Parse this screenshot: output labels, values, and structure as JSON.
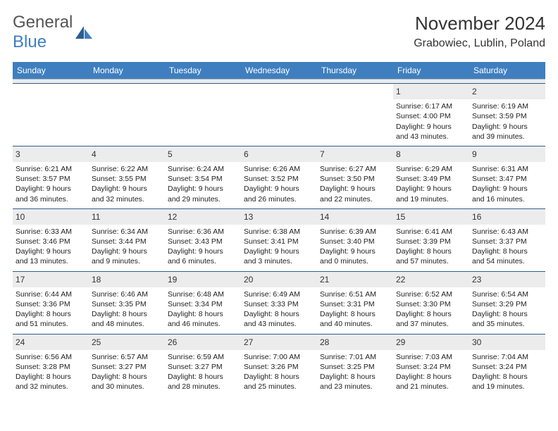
{
  "brand": {
    "word1": "General",
    "word2": "Blue"
  },
  "title": "November 2024",
  "location": "Grabowiec, Lublin, Poland",
  "colors": {
    "header_bg": "#3f7fbf",
    "header_text": "#ffffff",
    "daynum_bg": "#ececec",
    "border": "#2e5e8e",
    "text": "#222222",
    "brand_gray": "#555555",
    "brand_blue": "#3f7fbf"
  },
  "days_of_week": [
    "Sunday",
    "Monday",
    "Tuesday",
    "Wednesday",
    "Thursday",
    "Friday",
    "Saturday"
  ],
  "weeks": [
    [
      {
        "n": "",
        "sr": "",
        "ss": "",
        "d1": "",
        "d2": ""
      },
      {
        "n": "",
        "sr": "",
        "ss": "",
        "d1": "",
        "d2": ""
      },
      {
        "n": "",
        "sr": "",
        "ss": "",
        "d1": "",
        "d2": ""
      },
      {
        "n": "",
        "sr": "",
        "ss": "",
        "d1": "",
        "d2": ""
      },
      {
        "n": "",
        "sr": "",
        "ss": "",
        "d1": "",
        "d2": ""
      },
      {
        "n": "1",
        "sr": "Sunrise: 6:17 AM",
        "ss": "Sunset: 4:00 PM",
        "d1": "Daylight: 9 hours",
        "d2": "and 43 minutes."
      },
      {
        "n": "2",
        "sr": "Sunrise: 6:19 AM",
        "ss": "Sunset: 3:59 PM",
        "d1": "Daylight: 9 hours",
        "d2": "and 39 minutes."
      }
    ],
    [
      {
        "n": "3",
        "sr": "Sunrise: 6:21 AM",
        "ss": "Sunset: 3:57 PM",
        "d1": "Daylight: 9 hours",
        "d2": "and 36 minutes."
      },
      {
        "n": "4",
        "sr": "Sunrise: 6:22 AM",
        "ss": "Sunset: 3:55 PM",
        "d1": "Daylight: 9 hours",
        "d2": "and 32 minutes."
      },
      {
        "n": "5",
        "sr": "Sunrise: 6:24 AM",
        "ss": "Sunset: 3:54 PM",
        "d1": "Daylight: 9 hours",
        "d2": "and 29 minutes."
      },
      {
        "n": "6",
        "sr": "Sunrise: 6:26 AM",
        "ss": "Sunset: 3:52 PM",
        "d1": "Daylight: 9 hours",
        "d2": "and 26 minutes."
      },
      {
        "n": "7",
        "sr": "Sunrise: 6:27 AM",
        "ss": "Sunset: 3:50 PM",
        "d1": "Daylight: 9 hours",
        "d2": "and 22 minutes."
      },
      {
        "n": "8",
        "sr": "Sunrise: 6:29 AM",
        "ss": "Sunset: 3:49 PM",
        "d1": "Daylight: 9 hours",
        "d2": "and 19 minutes."
      },
      {
        "n": "9",
        "sr": "Sunrise: 6:31 AM",
        "ss": "Sunset: 3:47 PM",
        "d1": "Daylight: 9 hours",
        "d2": "and 16 minutes."
      }
    ],
    [
      {
        "n": "10",
        "sr": "Sunrise: 6:33 AM",
        "ss": "Sunset: 3:46 PM",
        "d1": "Daylight: 9 hours",
        "d2": "and 13 minutes."
      },
      {
        "n": "11",
        "sr": "Sunrise: 6:34 AM",
        "ss": "Sunset: 3:44 PM",
        "d1": "Daylight: 9 hours",
        "d2": "and 9 minutes."
      },
      {
        "n": "12",
        "sr": "Sunrise: 6:36 AM",
        "ss": "Sunset: 3:43 PM",
        "d1": "Daylight: 9 hours",
        "d2": "and 6 minutes."
      },
      {
        "n": "13",
        "sr": "Sunrise: 6:38 AM",
        "ss": "Sunset: 3:41 PM",
        "d1": "Daylight: 9 hours",
        "d2": "and 3 minutes."
      },
      {
        "n": "14",
        "sr": "Sunrise: 6:39 AM",
        "ss": "Sunset: 3:40 PM",
        "d1": "Daylight: 9 hours",
        "d2": "and 0 minutes."
      },
      {
        "n": "15",
        "sr": "Sunrise: 6:41 AM",
        "ss": "Sunset: 3:39 PM",
        "d1": "Daylight: 8 hours",
        "d2": "and 57 minutes."
      },
      {
        "n": "16",
        "sr": "Sunrise: 6:43 AM",
        "ss": "Sunset: 3:37 PM",
        "d1": "Daylight: 8 hours",
        "d2": "and 54 minutes."
      }
    ],
    [
      {
        "n": "17",
        "sr": "Sunrise: 6:44 AM",
        "ss": "Sunset: 3:36 PM",
        "d1": "Daylight: 8 hours",
        "d2": "and 51 minutes."
      },
      {
        "n": "18",
        "sr": "Sunrise: 6:46 AM",
        "ss": "Sunset: 3:35 PM",
        "d1": "Daylight: 8 hours",
        "d2": "and 48 minutes."
      },
      {
        "n": "19",
        "sr": "Sunrise: 6:48 AM",
        "ss": "Sunset: 3:34 PM",
        "d1": "Daylight: 8 hours",
        "d2": "and 46 minutes."
      },
      {
        "n": "20",
        "sr": "Sunrise: 6:49 AM",
        "ss": "Sunset: 3:33 PM",
        "d1": "Daylight: 8 hours",
        "d2": "and 43 minutes."
      },
      {
        "n": "21",
        "sr": "Sunrise: 6:51 AM",
        "ss": "Sunset: 3:31 PM",
        "d1": "Daylight: 8 hours",
        "d2": "and 40 minutes."
      },
      {
        "n": "22",
        "sr": "Sunrise: 6:52 AM",
        "ss": "Sunset: 3:30 PM",
        "d1": "Daylight: 8 hours",
        "d2": "and 37 minutes."
      },
      {
        "n": "23",
        "sr": "Sunrise: 6:54 AM",
        "ss": "Sunset: 3:29 PM",
        "d1": "Daylight: 8 hours",
        "d2": "and 35 minutes."
      }
    ],
    [
      {
        "n": "24",
        "sr": "Sunrise: 6:56 AM",
        "ss": "Sunset: 3:28 PM",
        "d1": "Daylight: 8 hours",
        "d2": "and 32 minutes."
      },
      {
        "n": "25",
        "sr": "Sunrise: 6:57 AM",
        "ss": "Sunset: 3:27 PM",
        "d1": "Daylight: 8 hours",
        "d2": "and 30 minutes."
      },
      {
        "n": "26",
        "sr": "Sunrise: 6:59 AM",
        "ss": "Sunset: 3:27 PM",
        "d1": "Daylight: 8 hours",
        "d2": "and 28 minutes."
      },
      {
        "n": "27",
        "sr": "Sunrise: 7:00 AM",
        "ss": "Sunset: 3:26 PM",
        "d1": "Daylight: 8 hours",
        "d2": "and 25 minutes."
      },
      {
        "n": "28",
        "sr": "Sunrise: 7:01 AM",
        "ss": "Sunset: 3:25 PM",
        "d1": "Daylight: 8 hours",
        "d2": "and 23 minutes."
      },
      {
        "n": "29",
        "sr": "Sunrise: 7:03 AM",
        "ss": "Sunset: 3:24 PM",
        "d1": "Daylight: 8 hours",
        "d2": "and 21 minutes."
      },
      {
        "n": "30",
        "sr": "Sunrise: 7:04 AM",
        "ss": "Sunset: 3:24 PM",
        "d1": "Daylight: 8 hours",
        "d2": "and 19 minutes."
      }
    ]
  ]
}
